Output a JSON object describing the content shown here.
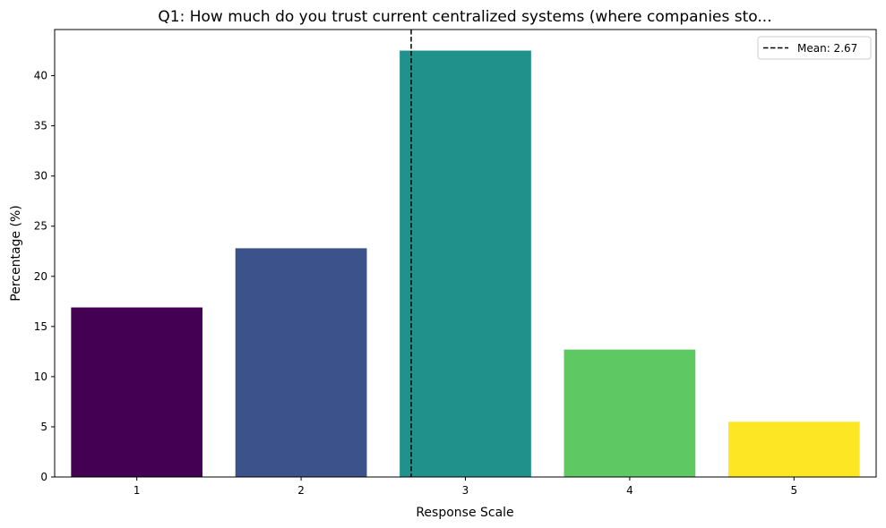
{
  "chart_data": {
    "type": "bar",
    "title": "Q1: How much do you trust current centralized systems (where companies sto...",
    "xlabel": "Response Scale",
    "ylabel": "Percentage (%)",
    "categories": [
      "1",
      "2",
      "3",
      "4",
      "5"
    ],
    "values": [
      16.9,
      22.8,
      42.5,
      12.7,
      5.5
    ],
    "colors": [
      "#440154",
      "#3b528b",
      "#21918c",
      "#5ec962",
      "#fde725"
    ],
    "ylim": [
      0,
      44.6
    ],
    "yticks": [
      0,
      5,
      10,
      15,
      20,
      25,
      30,
      35,
      40
    ],
    "mean": 2.67,
    "legend": {
      "label": "Mean: 2.67",
      "placement": "upper right"
    },
    "grid": false
  }
}
